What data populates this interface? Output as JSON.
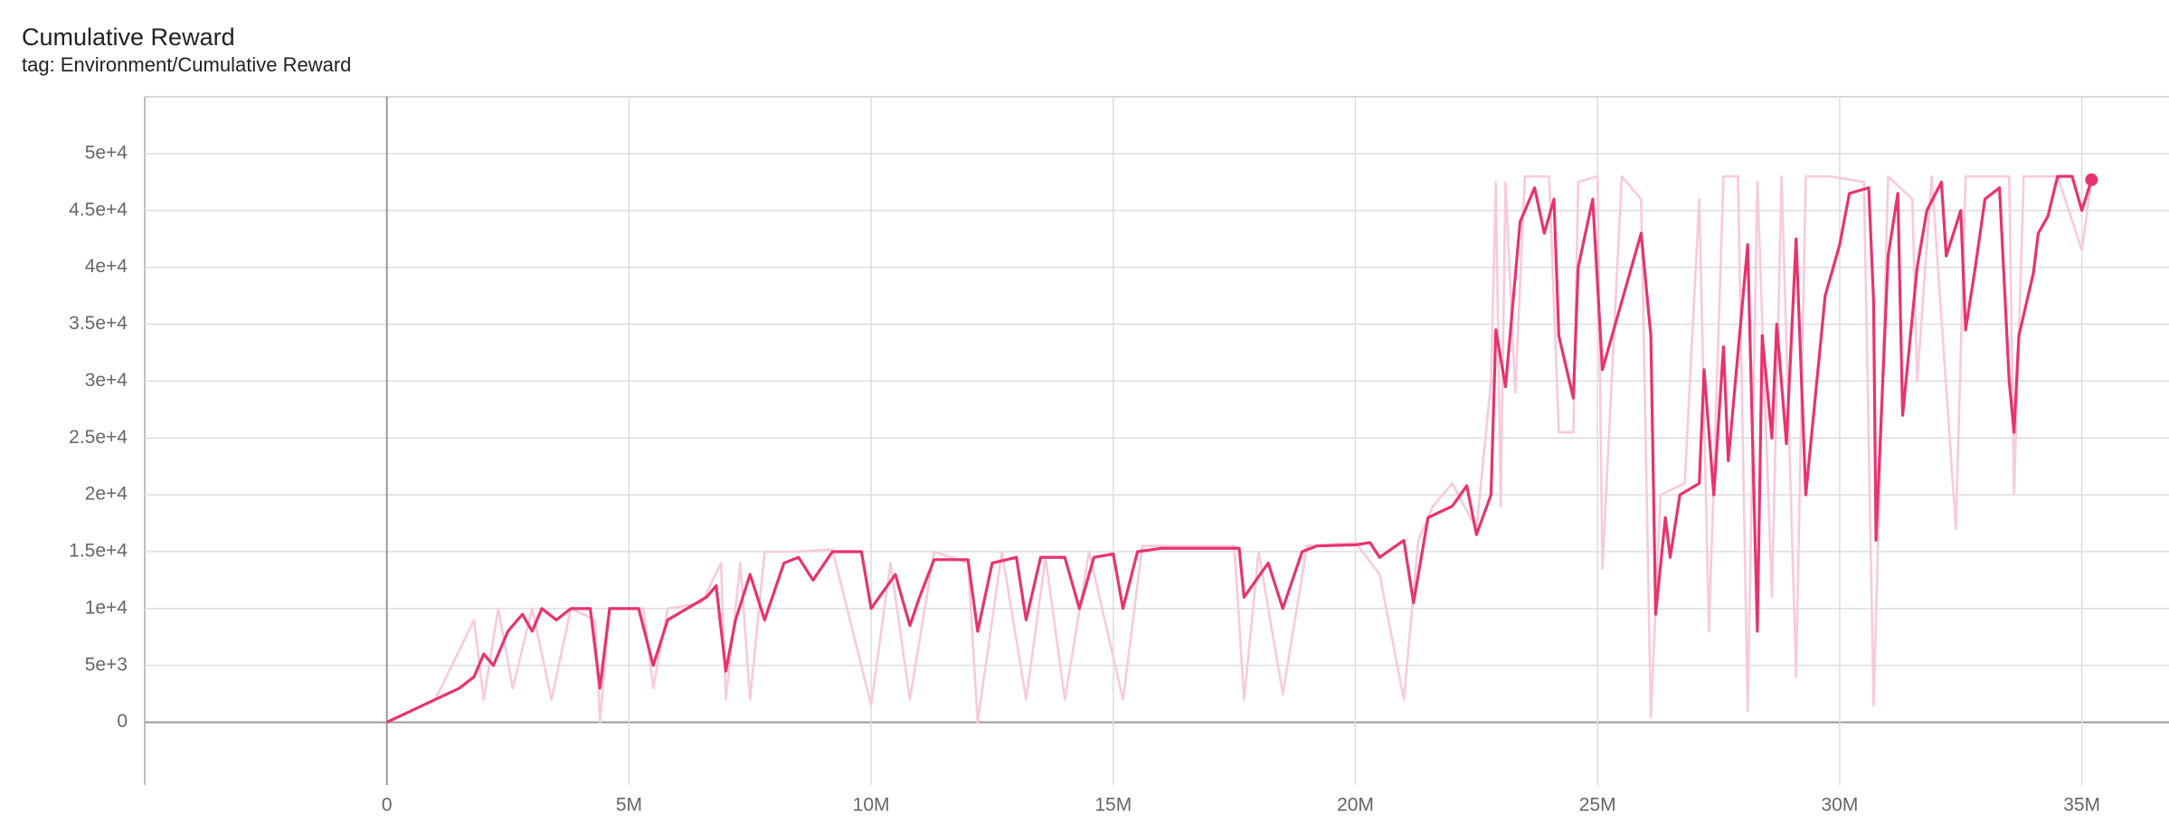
{
  "chart_data": {
    "type": "line",
    "title": "Cumulative Reward",
    "subtitle": "tag: Environment/Cumulative Reward",
    "xlim": [
      -5000000,
      36800000
    ],
    "xticks": [
      0,
      {
        "value": 5000000,
        "label": "5M"
      },
      {
        "value": 10000000,
        "label": "10M"
      },
      {
        "value": 15000000,
        "label": "15M"
      },
      {
        "value": 20000000,
        "label": "20M"
      },
      {
        "value": 25000000,
        "label": "25M"
      },
      {
        "value": 30000000,
        "label": "30M"
      },
      {
        "value": 35000000,
        "label": "35M"
      }
    ],
    "ylim": [
      -5200,
      55000
    ],
    "yticks": [
      0,
      {
        "value": 5000,
        "label": "5e+3"
      },
      {
        "value": 10000,
        "label": "1e+4"
      },
      {
        "value": 15000,
        "label": "1.5e+4"
      },
      {
        "value": 20000,
        "label": "2e+4"
      },
      {
        "value": 25000,
        "label": "2.5e+4"
      },
      {
        "value": 30000,
        "label": "3e+4"
      },
      {
        "value": 35000,
        "label": "3.5e+4"
      },
      {
        "value": 40000,
        "label": "4e+4"
      },
      {
        "value": 45000,
        "label": "4.5e+4"
      },
      {
        "value": 50000,
        "label": "5e+4"
      }
    ],
    "grid": true,
    "series": [
      {
        "color": "#f8cadb",
        "x": [
          0,
          1000000,
          1800000,
          2000000,
          2300000,
          2600000,
          3000000,
          3400000,
          3800000,
          4300000,
          4400000,
          4600000,
          5300000,
          5500000,
          5800000,
          6500000,
          6900000,
          7000000,
          7300000,
          7500000,
          7800000,
          8500000,
          9200000,
          10000000,
          10400000,
          10800000,
          11300000,
          12000000,
          12200000,
          12700000,
          13200000,
          13600000,
          14000000,
          14500000,
          15200000,
          15600000,
          17500000,
          17700000,
          18000000,
          18500000,
          19000000,
          20000000,
          20500000,
          21000000,
          21300000,
          21600000,
          22000000,
          22500000,
          22800000,
          22900000,
          23000000,
          23100000,
          23300000,
          23500000,
          24000000,
          24200000,
          24500000,
          24600000,
          25000000,
          25100000,
          25500000,
          25900000,
          26100000,
          26300000,
          26800000,
          27100000,
          27300000,
          27600000,
          27900000,
          28100000,
          28300000,
          28600000,
          28800000,
          29100000,
          29300000,
          29800000,
          30500000,
          30700000,
          31000000,
          31500000,
          31600000,
          31900000,
          32400000,
          32600000,
          33500000,
          33600000,
          33800000,
          34500000,
          35000000,
          35200000
        ],
        "values": [
          0,
          2000,
          9000,
          2000,
          10000,
          3000,
          10000,
          2000,
          10000,
          9000,
          0,
          10000,
          10000,
          3000,
          10000,
          10500,
          14000,
          2000,
          14000,
          2000,
          15000,
          15000,
          15200,
          1500,
          14000,
          2000,
          15000,
          14000,
          0,
          15000,
          2000,
          14500,
          2000,
          15000,
          2000,
          15500,
          15500,
          2000,
          15000,
          2500,
          15500,
          15800,
          13000,
          2000,
          16000,
          19000,
          21000,
          17000,
          30000,
          47500,
          19000,
          47500,
          29000,
          48000,
          48000,
          25500,
          25500,
          47500,
          48000,
          13500,
          48000,
          46000,
          500,
          20000,
          21000,
          46000,
          8000,
          48000,
          48000,
          1000,
          47500,
          11000,
          48000,
          4000,
          48000,
          48000,
          47500,
          1500,
          48000,
          46000,
          30000,
          48000,
          17000,
          48000,
          48000,
          20000,
          48000,
          48000,
          41500,
          47700
        ]
      },
      {
        "color": "#e8336d",
        "x": [
          0,
          500000,
          1000000,
          1500000,
          1800000,
          2000000,
          2200000,
          2500000,
          2800000,
          3000000,
          3200000,
          3500000,
          3800000,
          4200000,
          4400000,
          4600000,
          5200000,
          5500000,
          5800000,
          6200000,
          6600000,
          6800000,
          7000000,
          7200000,
          7500000,
          7800000,
          8200000,
          8500000,
          8800000,
          9200000,
          9800000,
          10000000,
          10500000,
          10800000,
          11000000,
          11300000,
          12000000,
          12200000,
          12500000,
          13000000,
          13200000,
          13500000,
          14000000,
          14300000,
          14600000,
          15000000,
          15200000,
          15500000,
          16000000,
          17600000,
          17700000,
          18200000,
          18500000,
          18900000,
          19200000,
          20000000,
          20300000,
          20500000,
          21000000,
          21200000,
          21500000,
          22000000,
          22300000,
          22500000,
          22800000,
          22900000,
          23100000,
          23400000,
          23700000,
          23900000,
          24100000,
          24200000,
          24500000,
          24600000,
          24900000,
          25100000,
          25900000,
          26100000,
          26200000,
          26400000,
          26500000,
          26700000,
          27100000,
          27200000,
          27400000,
          27600000,
          27700000,
          28100000,
          28300000,
          28400000,
          28600000,
          28700000,
          28900000,
          29100000,
          29300000,
          29700000,
          30000000,
          30200000,
          30600000,
          30700000,
          30750000,
          31000000,
          31200000,
          31300000,
          31600000,
          31800000,
          32100000,
          32200000,
          32500000,
          32600000,
          32800000,
          33000000,
          33300000,
          33500000,
          33600000,
          33700000,
          34000000,
          34100000,
          34300000,
          34500000,
          34800000,
          35000000,
          35200000
        ],
        "values": [
          0,
          1000,
          2000,
          3000,
          4000,
          6000,
          5000,
          8000,
          9500,
          8000,
          10000,
          9000,
          10000,
          10000,
          3000,
          10000,
          10000,
          5000,
          9000,
          10000,
          11000,
          12000,
          4500,
          9000,
          13000,
          9000,
          14000,
          14500,
          12500,
          15000,
          15000,
          10000,
          13000,
          8500,
          11000,
          14300,
          14300,
          8000,
          14000,
          14500,
          9000,
          14500,
          14500,
          10000,
          14500,
          14800,
          10000,
          15000,
          15300,
          15300,
          11000,
          14000,
          10000,
          15000,
          15500,
          15600,
          15800,
          14500,
          16000,
          10500,
          18000,
          19000,
          20800,
          16500,
          20000,
          34500,
          29500,
          44000,
          47000,
          43000,
          46000,
          34000,
          28500,
          40000,
          46000,
          31000,
          43000,
          34000,
          9500,
          18000,
          14500,
          20000,
          21000,
          31000,
          20000,
          33000,
          23000,
          42000,
          8000,
          34000,
          25000,
          35000,
          24500,
          42500,
          20000,
          37500,
          42000,
          46500,
          47000,
          37000,
          16000,
          41000,
          46500,
          27000,
          40000,
          45000,
          47500,
          41000,
          45000,
          34500,
          40000,
          46000,
          47000,
          30000,
          25500,
          34000,
          39500,
          43000,
          44500,
          48000,
          48000,
          45000,
          47700
        ]
      }
    ]
  }
}
